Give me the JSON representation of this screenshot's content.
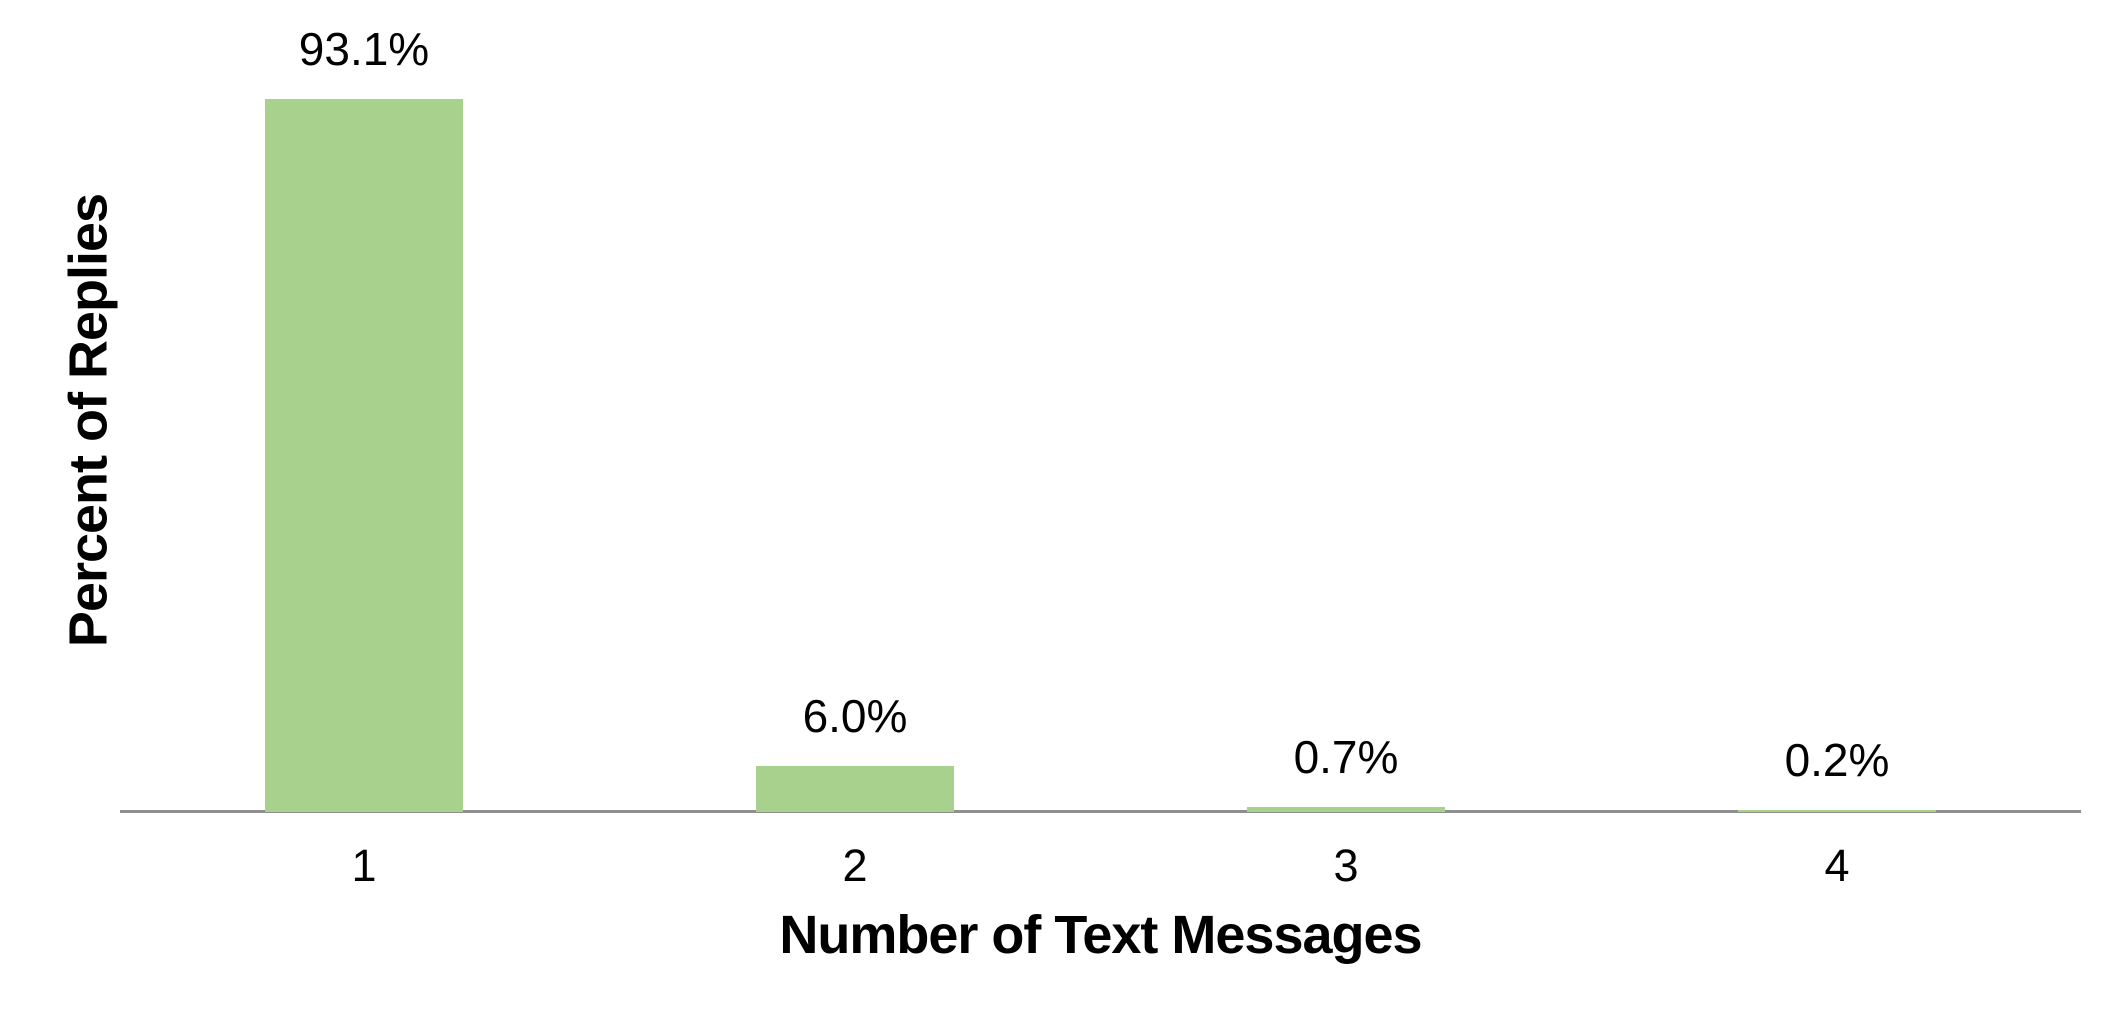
{
  "chart_data": {
    "type": "bar",
    "categories": [
      "1",
      "2",
      "3",
      "4"
    ],
    "values": [
      93.1,
      6.0,
      0.7,
      0.2
    ],
    "value_labels": [
      "93.1%",
      "6.0%",
      "0.7%",
      "0.2%"
    ],
    "title": "",
    "xlabel": "Number of Text Messages",
    "ylabel": "Percent of Replies",
    "ylim": [
      0,
      100
    ],
    "grid": false,
    "legend": false,
    "bar_color": "#A9D18E",
    "axis_line_color": "#8F8F8F",
    "text_color": "#000000"
  }
}
